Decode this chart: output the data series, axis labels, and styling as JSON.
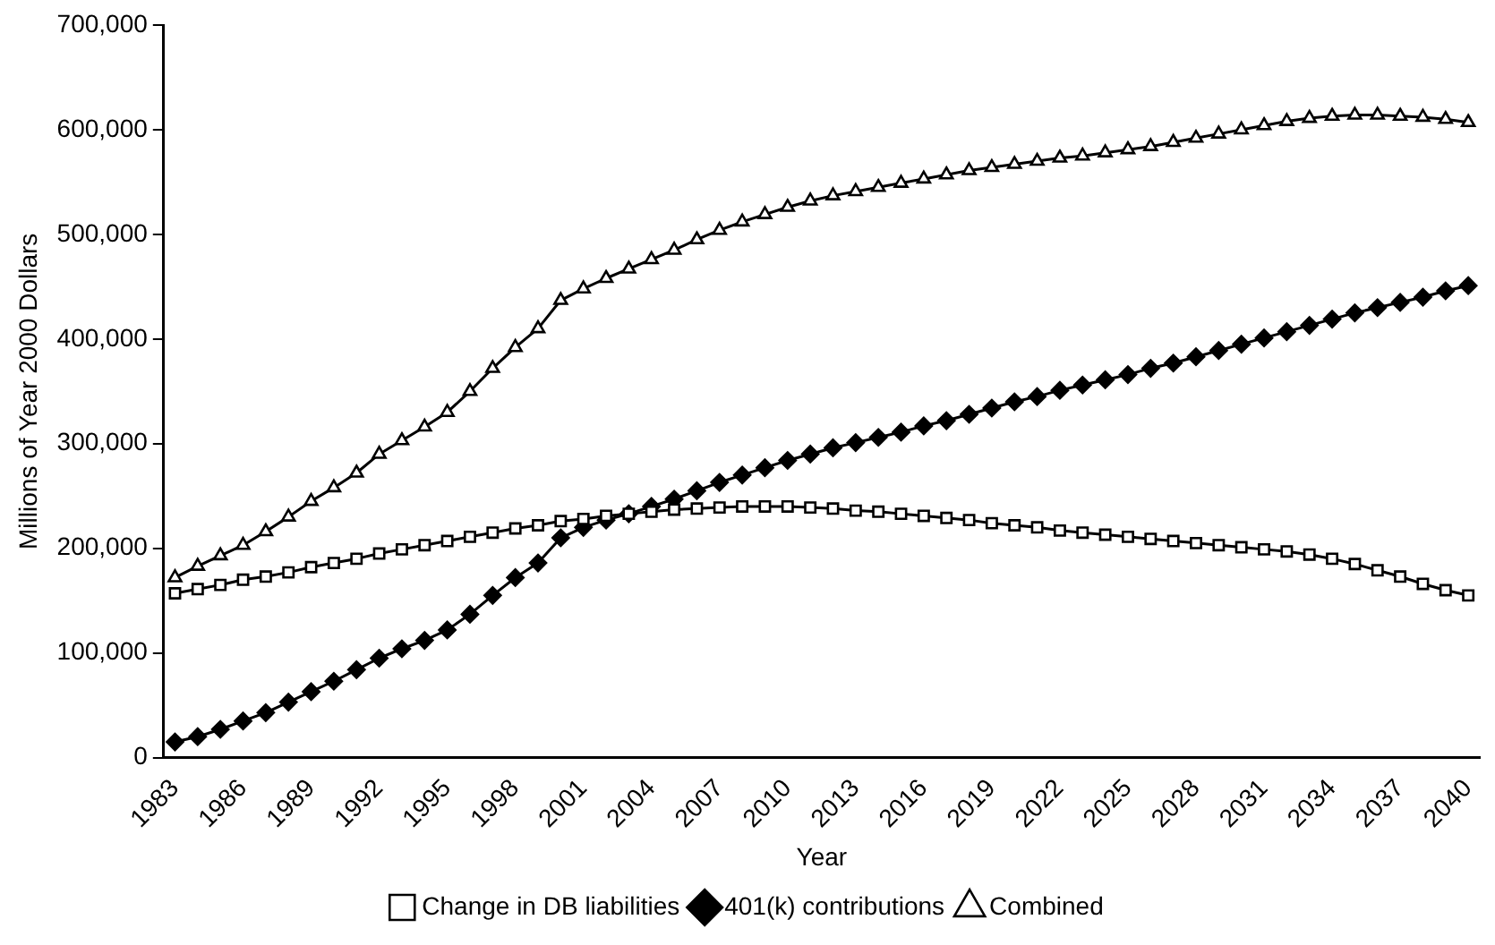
{
  "chart_data": {
    "type": "line",
    "xlabel": "Year",
    "ylabel": "Millions of Year 2000 Dollars",
    "categories": [
      "1983",
      null,
      null,
      "1986",
      null,
      null,
      "1989",
      null,
      null,
      "1992",
      null,
      null,
      "1995",
      null,
      null,
      "1998",
      null,
      null,
      "2001",
      null,
      null,
      "2004",
      null,
      null,
      "2007",
      null,
      null,
      "2010",
      null,
      null,
      "2013",
      null,
      null,
      "2016",
      null,
      null,
      "2019",
      null,
      null,
      "2022",
      null,
      null,
      "2025",
      null,
      null,
      "2028",
      null,
      null,
      "2031",
      null,
      null,
      "2034",
      null,
      null,
      "2037",
      null,
      null,
      "2040"
    ],
    "series": [
      {
        "name": "Change in DB liabilities",
        "color": "#000000",
        "marker": "square",
        "values": [
          157000,
          161000,
          165000,
          170000,
          173000,
          177000,
          182000,
          186000,
          190000,
          195000,
          199000,
          203000,
          207000,
          211000,
          215000,
          219000,
          222000,
          226000,
          228000,
          231000,
          233000,
          235000,
          237000,
          238000,
          239000,
          240000,
          240000,
          240000,
          239000,
          238000,
          236000,
          235000,
          233000,
          231000,
          229000,
          227000,
          224000,
          222000,
          220000,
          217000,
          215000,
          213000,
          211000,
          209000,
          207000,
          205000,
          203000,
          201000,
          199000,
          197000,
          194000,
          190000,
          185000,
          179000,
          173000,
          166000,
          160000,
          155000
        ]
      },
      {
        "name": "401(k) contributions",
        "color": "#000000",
        "marker": "diamond",
        "values": [
          15000,
          20000,
          27000,
          35000,
          43000,
          53000,
          63000,
          73000,
          84000,
          95000,
          104000,
          112000,
          122000,
          137000,
          155000,
          172000,
          186000,
          210000,
          220000,
          227000,
          233000,
          240000,
          247000,
          255000,
          263000,
          270000,
          277000,
          284000,
          290000,
          296000,
          301000,
          306000,
          311000,
          317000,
          322000,
          328000,
          334000,
          340000,
          345000,
          351000,
          356000,
          361000,
          366000,
          372000,
          377000,
          383000,
          389000,
          395000,
          401000,
          407000,
          413000,
          419000,
          425000,
          430000,
          435000,
          440000,
          446000,
          451000
        ]
      },
      {
        "name": "Combined",
        "color": "#000000",
        "marker": "triangle",
        "values": [
          172000,
          183000,
          193000,
          203000,
          216000,
          230000,
          245000,
          258000,
          272000,
          290000,
          303000,
          316000,
          330000,
          350000,
          372000,
          392000,
          410000,
          437000,
          448000,
          458000,
          467000,
          476000,
          485000,
          495000,
          504000,
          512000,
          519000,
          526000,
          532000,
          537000,
          541000,
          545000,
          549000,
          553000,
          557000,
          561000,
          564000,
          567000,
          570000,
          573000,
          575000,
          578000,
          581000,
          584000,
          588000,
          592000,
          596000,
          600000,
          604000,
          608000,
          611000,
          613000,
          614000,
          614000,
          613000,
          612000,
          610000,
          607000
        ]
      }
    ],
    "ylim": [
      0,
      700000
    ],
    "yticks": [
      0,
      {
        "value": 100000,
        "label": "100,000"
      },
      {
        "value": 200000,
        "label": "200,000"
      },
      {
        "value": 300000,
        "label": "300,000"
      },
      {
        "value": 400000,
        "label": "400,000"
      },
      {
        "value": 500000,
        "label": "500,000"
      },
      {
        "value": 600000,
        "label": "600,000"
      },
      {
        "value": 700000,
        "label": "700,000"
      }
    ],
    "grid": false,
    "legend": "bottom"
  }
}
